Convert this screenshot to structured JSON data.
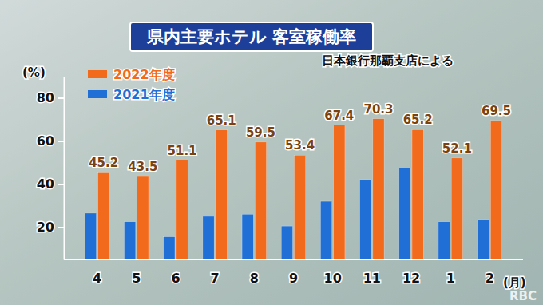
{
  "chart_data": {
    "type": "bar",
    "title": "県内主要ホテル 客室稼働率",
    "subtitle": "日本銀行那覇支店による",
    "y_label": "(%)",
    "x_label": "(月)",
    "annotations": [
      "RBC"
    ],
    "categories": [
      "4",
      "5",
      "6",
      "7",
      "8",
      "9",
      "10",
      "11",
      "12",
      "1",
      "2"
    ],
    "series": [
      {
        "name": "2022年度",
        "color": "#f26a1b",
        "data_labels": true,
        "values": [
          45.2,
          43.5,
          51.1,
          65.1,
          59.5,
          53.4,
          67.4,
          70.3,
          65.2,
          52.1,
          69.5
        ]
      },
      {
        "name": "2021年度",
        "color": "#1f6fd6",
        "data_labels": false,
        "values": [
          26.5,
          22.5,
          15.5,
          25,
          26,
          20.5,
          32,
          42,
          47.5,
          22.5,
          23.5
        ]
      }
    ],
    "ylim": [
      5,
      90
    ],
    "yticks": [
      20,
      40,
      60,
      80
    ],
    "grid": false,
    "legend": "top-left"
  }
}
